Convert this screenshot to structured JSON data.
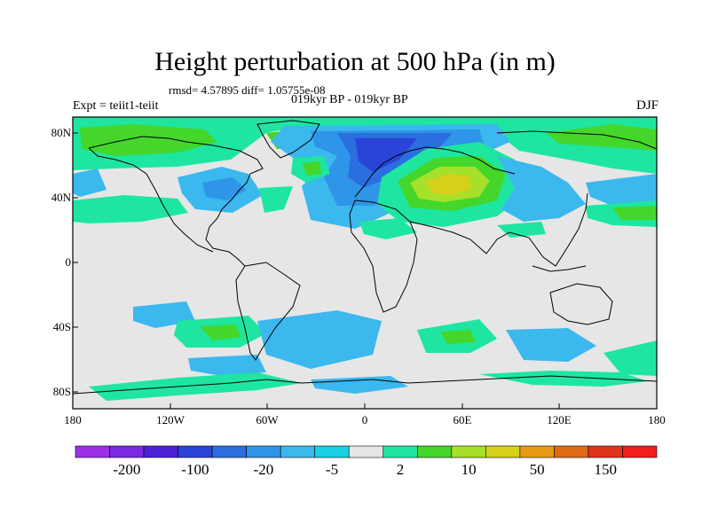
{
  "header": {
    "title": "Height perturbation at 500 hPa (in m)",
    "stats": "rmsd= 4.57895 diff= 1.05755e-08",
    "periods": "019kyr BP - 019kyr BP",
    "experiment": "Expt = teiit1-teiit",
    "season": "DJF"
  },
  "axes": {
    "lat_ticks": [
      "80N",
      "40N",
      "0",
      "40S",
      "80S"
    ],
    "lon_ticks": [
      "180",
      "120W",
      "60W",
      "0",
      "60E",
      "120E",
      "180"
    ]
  },
  "colorbar": {
    "labels": [
      "-200",
      "-100",
      "-20",
      "-5",
      "2",
      "10",
      "50",
      "150"
    ],
    "colors": [
      "#9e2ee8",
      "#7a2ae0",
      "#4b22d6",
      "#2a44d8",
      "#2a6ee0",
      "#2e95e8",
      "#3bb8ee",
      "#17d0e4",
      "#e6e6e6",
      "#1ee6a0",
      "#44d62a",
      "#a6e02a",
      "#d6d01a",
      "#e69a14",
      "#e06a14",
      "#e0341a",
      "#f01e1e"
    ]
  },
  "map": {
    "background_color": "#e6e6e6",
    "projection": "cylindrical-equidistant",
    "lon_range": [
      -180,
      180
    ],
    "lat_range": [
      -90,
      90
    ]
  }
}
